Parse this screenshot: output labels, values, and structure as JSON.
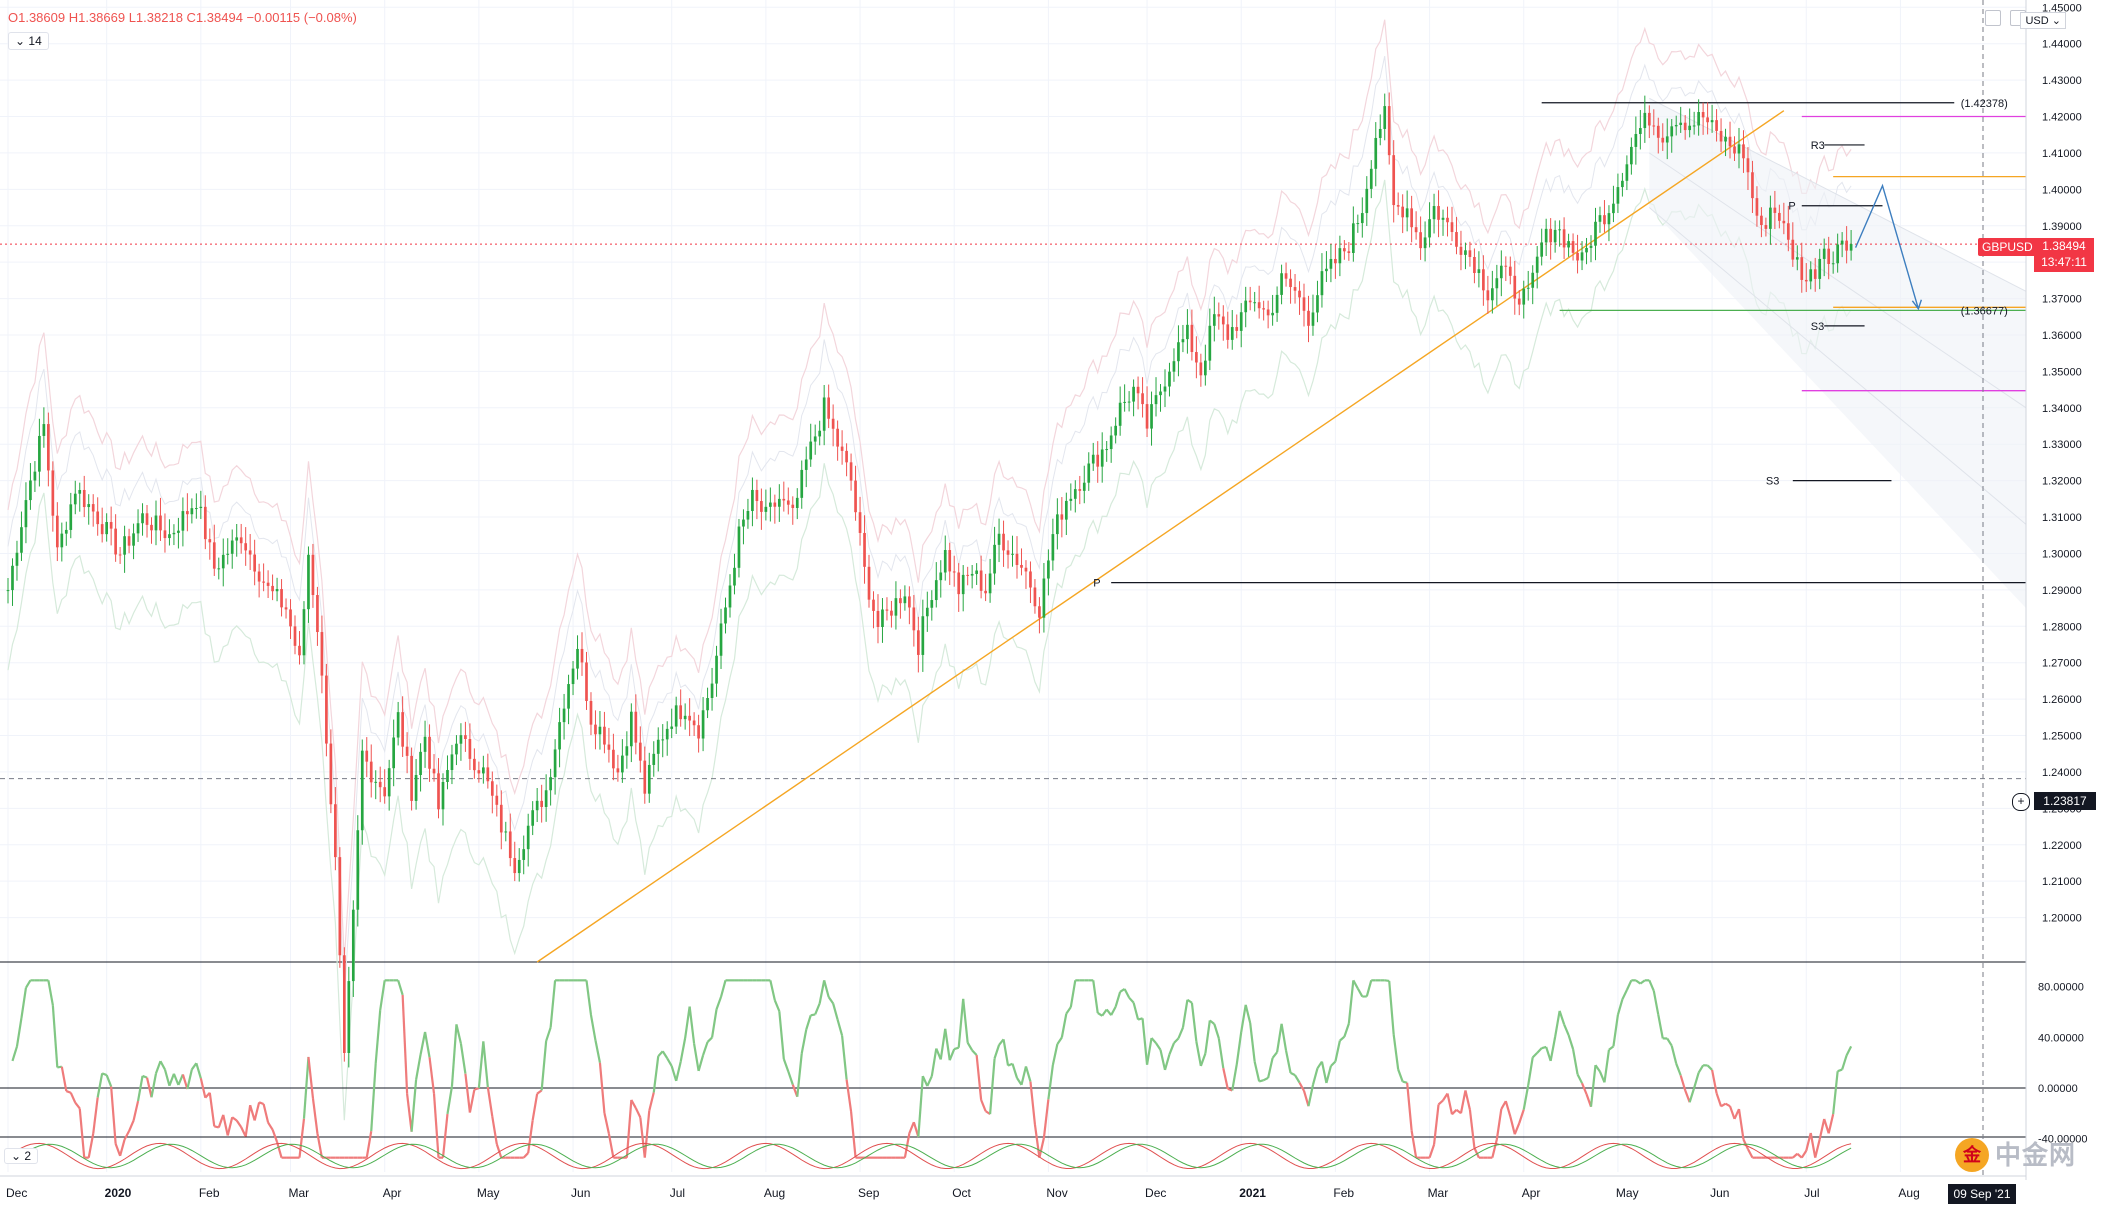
{
  "header": {
    "ohlc": "O1.38609 H1.38669 L1.38218 C1.38494 −0.00115 (−0.08%)",
    "indicator_length": "14",
    "indicator2_length": "2",
    "currency": "USD"
  },
  "price_labels": {
    "symbol": "GBPUSD",
    "last_price": "1.38494",
    "countdown": "13:47:11",
    "crosshair_price": "1.23817",
    "crosshair_date": "09 Sep '21"
  },
  "annotations": {
    "high_label": "(1.42378)",
    "low_label": "(1.36677)",
    "r3_label": "R3",
    "p_label": "P",
    "s3_label": "S3",
    "s3b_label": "S3",
    "p_big_label": "P"
  },
  "watermark": "中金网",
  "colors": {
    "up": "#26a641",
    "down": "#ef5350",
    "trend": "#f5a623",
    "magenta": "#e040e0",
    "green_line": "#4caf50",
    "projection": "#3d7ebf"
  },
  "chart_data": {
    "type": "candlestick",
    "symbol": "GBPUSD",
    "timeframe": "daily",
    "y_axis": {
      "min": 1.19,
      "max": 1.45,
      "ticks": [
        1.45,
        1.44,
        1.43,
        1.42,
        1.41,
        1.4,
        1.39,
        1.38,
        1.37,
        1.36,
        1.35,
        1.34,
        1.33,
        1.32,
        1.31,
        1.3,
        1.29,
        1.28,
        1.27,
        1.26,
        1.25,
        1.24,
        1.23,
        1.22,
        1.21,
        1.2
      ],
      "tick_labels": [
        "1.45000",
        "1.44000",
        "1.43000",
        "1.42000",
        "1.41000",
        "1.40000",
        "1.39000",
        "1.38000",
        "1.37000",
        "1.36000",
        "1.35000",
        "1.34000",
        "1.33000",
        "1.32000",
        "1.31000",
        "1.30000",
        "1.29000",
        "1.28000",
        "1.27000",
        "1.26000",
        "1.25000",
        "1.24000",
        "1.23000",
        "1.22000",
        "1.21000",
        "1.20000"
      ]
    },
    "x_axis": {
      "labels": [
        "Dec",
        "2020",
        "Feb",
        "Mar",
        "Apr",
        "May",
        "Jun",
        "Jul",
        "Aug",
        "Sep",
        "Oct",
        "Nov",
        "Dec",
        "2021",
        "Feb",
        "Mar",
        "Apr",
        "May",
        "Jun",
        "Jul",
        "Aug"
      ],
      "bar_index": [
        0,
        22,
        43,
        63,
        84,
        105,
        126,
        148,
        169,
        190,
        211,
        232,
        254,
        275,
        296,
        317,
        338,
        359,
        380,
        401,
        422
      ],
      "total_bars": 450
    },
    "price_path": [
      [
        0,
        1.29
      ],
      [
        4,
        1.315
      ],
      [
        8,
        1.335
      ],
      [
        11,
        1.3
      ],
      [
        15,
        1.318
      ],
      [
        20,
        1.31
      ],
      [
        25,
        1.3
      ],
      [
        30,
        1.31
      ],
      [
        36,
        1.305
      ],
      [
        42,
        1.315
      ],
      [
        46,
        1.296
      ],
      [
        52,
        1.305
      ],
      [
        58,
        1.29
      ],
      [
        62,
        1.285
      ],
      [
        65,
        1.27
      ],
      [
        67,
        1.3
      ],
      [
        69,
        1.28
      ],
      [
        71,
        1.25
      ],
      [
        73,
        1.215
      ],
      [
        75,
        1.16
      ],
      [
        77,
        1.2
      ],
      [
        79,
        1.245
      ],
      [
        81,
        1.24
      ],
      [
        84,
        1.235
      ],
      [
        87,
        1.255
      ],
      [
        90,
        1.235
      ],
      [
        93,
        1.25
      ],
      [
        96,
        1.23
      ],
      [
        100,
        1.25
      ],
      [
        103,
        1.245
      ],
      [
        106,
        1.24
      ],
      [
        110,
        1.225
      ],
      [
        113,
        1.215
      ],
      [
        116,
        1.225
      ],
      [
        120,
        1.235
      ],
      [
        124,
        1.26
      ],
      [
        127,
        1.275
      ],
      [
        130,
        1.255
      ],
      [
        133,
        1.25
      ],
      [
        136,
        1.24
      ],
      [
        139,
        1.255
      ],
      [
        142,
        1.235
      ],
      [
        145,
        1.248
      ],
      [
        148,
        1.255
      ],
      [
        151,
        1.258
      ],
      [
        154,
        1.252
      ],
      [
        157,
        1.265
      ],
      [
        160,
        1.285
      ],
      [
        163,
        1.305
      ],
      [
        166,
        1.315
      ],
      [
        169,
        1.31
      ],
      [
        172,
        1.315
      ],
      [
        175,
        1.31
      ],
      [
        178,
        1.325
      ],
      [
        182,
        1.34
      ],
      [
        185,
        1.33
      ],
      [
        188,
        1.32
      ],
      [
        191,
        1.295
      ],
      [
        194,
        1.28
      ],
      [
        197,
        1.285
      ],
      [
        200,
        1.29
      ],
      [
        203,
        1.275
      ],
      [
        206,
        1.29
      ],
      [
        209,
        1.3
      ],
      [
        212,
        1.29
      ],
      [
        215,
        1.295
      ],
      [
        218,
        1.29
      ],
      [
        221,
        1.305
      ],
      [
        224,
        1.3
      ],
      [
        227,
        1.295
      ],
      [
        230,
        1.285
      ],
      [
        233,
        1.305
      ],
      [
        236,
        1.315
      ],
      [
        239,
        1.32
      ],
      [
        242,
        1.325
      ],
      [
        245,
        1.33
      ],
      [
        248,
        1.34
      ],
      [
        251,
        1.345
      ],
      [
        254,
        1.335
      ],
      [
        257,
        1.345
      ],
      [
        260,
        1.355
      ],
      [
        263,
        1.36
      ],
      [
        266,
        1.35
      ],
      [
        269,
        1.365
      ],
      [
        272,
        1.36
      ],
      [
        275,
        1.365
      ],
      [
        278,
        1.37
      ],
      [
        281,
        1.365
      ],
      [
        284,
        1.375
      ],
      [
        287,
        1.372
      ],
      [
        290,
        1.365
      ],
      [
        293,
        1.375
      ],
      [
        296,
        1.38
      ],
      [
        299,
        1.385
      ],
      [
        302,
        1.395
      ],
      [
        305,
        1.415
      ],
      [
        307,
        1.42
      ],
      [
        309,
        1.395
      ],
      [
        312,
        1.395
      ],
      [
        315,
        1.385
      ],
      [
        318,
        1.395
      ],
      [
        321,
        1.39
      ],
      [
        324,
        1.385
      ],
      [
        327,
        1.38
      ],
      [
        330,
        1.372
      ],
      [
        333,
        1.378
      ],
      [
        336,
        1.372
      ],
      [
        339,
        1.37
      ],
      [
        342,
        1.385
      ],
      [
        345,
        1.39
      ],
      [
        348,
        1.385
      ],
      [
        351,
        1.38
      ],
      [
        354,
        1.39
      ],
      [
        357,
        1.395
      ],
      [
        360,
        1.405
      ],
      [
        363,
        1.415
      ],
      [
        366,
        1.42
      ],
      [
        369,
        1.415
      ],
      [
        372,
        1.42
      ],
      [
        375,
        1.418
      ],
      [
        378,
        1.42
      ],
      [
        381,
        1.415
      ],
      [
        384,
        1.412
      ],
      [
        387,
        1.41
      ],
      [
        389,
        1.398
      ],
      [
        391,
        1.388
      ],
      [
        393,
        1.395
      ],
      [
        395,
        1.393
      ],
      [
        397,
        1.385
      ],
      [
        399,
        1.38
      ],
      [
        401,
        1.375
      ],
      [
        403,
        1.378
      ],
      [
        405,
        1.385
      ],
      [
        407,
        1.38
      ],
      [
        409,
        1.387
      ],
      [
        411,
        1.385
      ]
    ],
    "oscillator_range": [
      -40,
      80
    ],
    "oscillator_ticks": [
      "80.00000",
      "40.00000",
      "0.00000",
      "-40.00000"
    ],
    "levels": [
      {
        "name": "high",
        "price": 1.42378,
        "label": "(1.42378)"
      },
      {
        "name": "low",
        "price": 1.36677,
        "label": "(1.36677)"
      },
      {
        "name": "R3",
        "price": 1.4122
      },
      {
        "name": "P",
        "price": 1.3955
      },
      {
        "name": "S3",
        "price": 1.3625
      },
      {
        "name": "S3",
        "price": 1.32
      },
      {
        "name": "P",
        "price": 1.292
      },
      {
        "name": "magenta_upper",
        "price": 1.42
      },
      {
        "name": "magenta_lower",
        "price": 1.3447
      },
      {
        "name": "orange_upper",
        "price": 1.4035
      },
      {
        "name": "orange_lower",
        "price": 1.3676
      }
    ],
    "last_price": 1.38494,
    "crosshair_price": 1.23817
  }
}
